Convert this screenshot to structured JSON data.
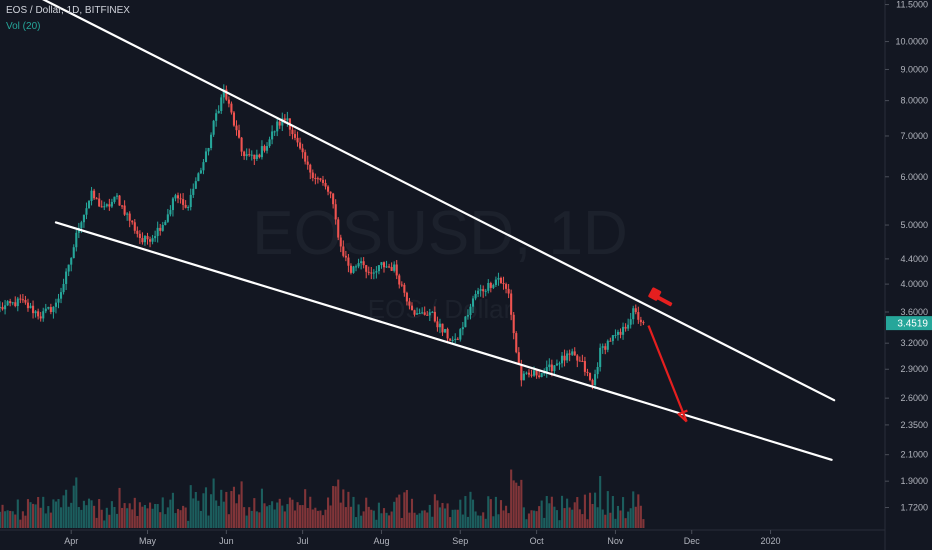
{
  "header": {
    "title": "EOS / Dollar, 1D, BITFINEX",
    "volume_label": "Vol (20)"
  },
  "watermark": {
    "symbol": "EOSUSD, 1D",
    "name": "EOS / Dollar"
  },
  "colors": {
    "background": "#131722",
    "up": "#26a69a",
    "down": "#ef5350",
    "trendline": "#ffffff",
    "arrow": "#e51f1f",
    "price_tag": "#26a69a",
    "axis_text": "#b2b5be"
  },
  "chart_data": {
    "type": "candlestick",
    "title": "EOS / Dollar, 1D, BITFINEX",
    "y_scale": "log",
    "ylim": [
      1.58,
      11.7
    ],
    "y_ticks": [
      11.5,
      10.0,
      9.0,
      8.0,
      7.0,
      6.0,
      5.0,
      4.4,
      4.0,
      3.6,
      3.2,
      2.9,
      2.6,
      2.35,
      2.1,
      1.9,
      1.72
    ],
    "y_tick_labels": [
      "11.5000",
      "10.0000",
      "9.0000",
      "8.0000",
      "7.0000",
      "6.0000",
      "5.0000",
      "4.4000",
      "4.0000",
      "3.6000",
      "3.2000",
      "2.9000",
      "2.6000",
      "2.3500",
      "2.1000",
      "1.9000",
      "1.7200"
    ],
    "x_labels": [
      "Apr",
      "May",
      "Jun",
      "Jul",
      "Aug",
      "Sep",
      "Oct",
      "Nov",
      "Dec",
      "2020"
    ],
    "x_label_dates": [
      "2019-04-01",
      "2019-05-01",
      "2019-06-01",
      "2019-07-01",
      "2019-08-01",
      "2019-09-01",
      "2019-10-01",
      "2019-11-01",
      "2019-12-01",
      "2020-01-01"
    ],
    "x_range": [
      "2019-03-04",
      "2020-02-15"
    ],
    "price_path": [
      [
        "2019-03-04",
        3.65
      ],
      [
        "2019-03-12",
        3.75
      ],
      [
        "2019-03-20",
        3.55
      ],
      [
        "2019-03-26",
        3.7
      ],
      [
        "2019-03-31",
        4.25
      ],
      [
        "2019-04-04",
        5.0
      ],
      [
        "2019-04-09",
        5.6
      ],
      [
        "2019-04-14",
        5.3
      ],
      [
        "2019-04-19",
        5.55
      ],
      [
        "2019-04-24",
        5.1
      ],
      [
        "2019-04-29",
        4.7
      ],
      [
        "2019-05-03",
        4.8
      ],
      [
        "2019-05-08",
        5.1
      ],
      [
        "2019-05-12",
        5.6
      ],
      [
        "2019-05-16",
        5.3
      ],
      [
        "2019-05-20",
        5.9
      ],
      [
        "2019-05-24",
        6.5
      ],
      [
        "2019-05-28",
        7.6
      ],
      [
        "2019-05-31",
        8.3
      ],
      [
        "2019-06-03",
        7.6
      ],
      [
        "2019-06-07",
        6.6
      ],
      [
        "2019-06-12",
        6.4
      ],
      [
        "2019-06-17",
        6.8
      ],
      [
        "2019-06-21",
        7.3
      ],
      [
        "2019-06-25",
        7.5
      ],
      [
        "2019-06-28",
        6.9
      ],
      [
        "2019-07-03",
        6.2
      ],
      [
        "2019-07-08",
        5.9
      ],
      [
        "2019-07-12",
        5.6
      ],
      [
        "2019-07-16",
        4.6
      ],
      [
        "2019-07-20",
        4.2
      ],
      [
        "2019-07-24",
        4.4
      ],
      [
        "2019-07-28",
        4.1
      ],
      [
        "2019-08-01",
        4.3
      ],
      [
        "2019-08-06",
        4.25
      ],
      [
        "2019-08-11",
        3.8
      ],
      [
        "2019-08-15",
        3.55
      ],
      [
        "2019-08-20",
        3.6
      ],
      [
        "2019-08-25",
        3.35
      ],
      [
        "2019-08-30",
        3.2
      ],
      [
        "2019-09-03",
        3.5
      ],
      [
        "2019-09-07",
        3.85
      ],
      [
        "2019-09-11",
        3.95
      ],
      [
        "2019-09-16",
        4.1
      ],
      [
        "2019-09-20",
        3.85
      ],
      [
        "2019-09-23",
        3.1
      ],
      [
        "2019-09-25",
        2.8
      ],
      [
        "2019-09-30",
        2.85
      ],
      [
        "2019-10-05",
        2.88
      ],
      [
        "2019-10-10",
        3.0
      ],
      [
        "2019-10-15",
        3.05
      ],
      [
        "2019-10-19",
        2.95
      ],
      [
        "2019-10-23",
        2.72
      ],
      [
        "2019-10-26",
        3.1
      ],
      [
        "2019-10-30",
        3.25
      ],
      [
        "2019-11-03",
        3.3
      ],
      [
        "2019-11-08",
        3.6
      ],
      [
        "2019-11-12",
        3.45
      ]
    ],
    "trendlines": [
      {
        "name": "upper",
        "from": [
          "2019-03-18",
          11.9
        ],
        "to": [
          "2020-01-26",
          2.58
        ]
      },
      {
        "name": "lower",
        "from": [
          "2019-03-26",
          5.05
        ],
        "to": [
          "2020-01-25",
          2.06
        ]
      }
    ],
    "projection_arrow": {
      "from": [
        "2019-11-14",
        3.42
      ],
      "to": [
        "2019-11-29",
        2.38
      ]
    },
    "last_price": 3.4519,
    "last_price_label": "3.4519"
  }
}
